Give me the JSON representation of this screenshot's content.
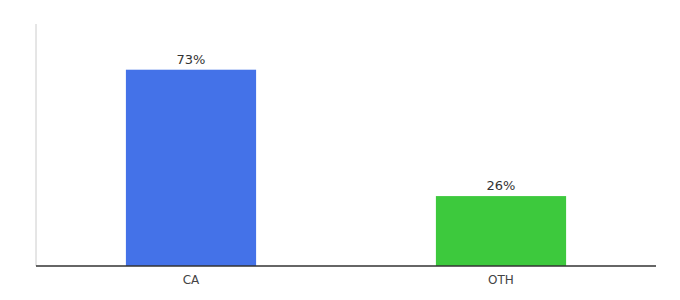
{
  "chart_data": {
    "type": "bar",
    "categories": [
      "CA",
      "OTH"
    ],
    "values": [
      73,
      26
    ],
    "value_labels": [
      "73%",
      "26%"
    ],
    "data_labels": true,
    "colors": [
      "#4472e8",
      "#3dc93d"
    ],
    "ylim": [
      0,
      90
    ],
    "tick_labels": "x"
  }
}
